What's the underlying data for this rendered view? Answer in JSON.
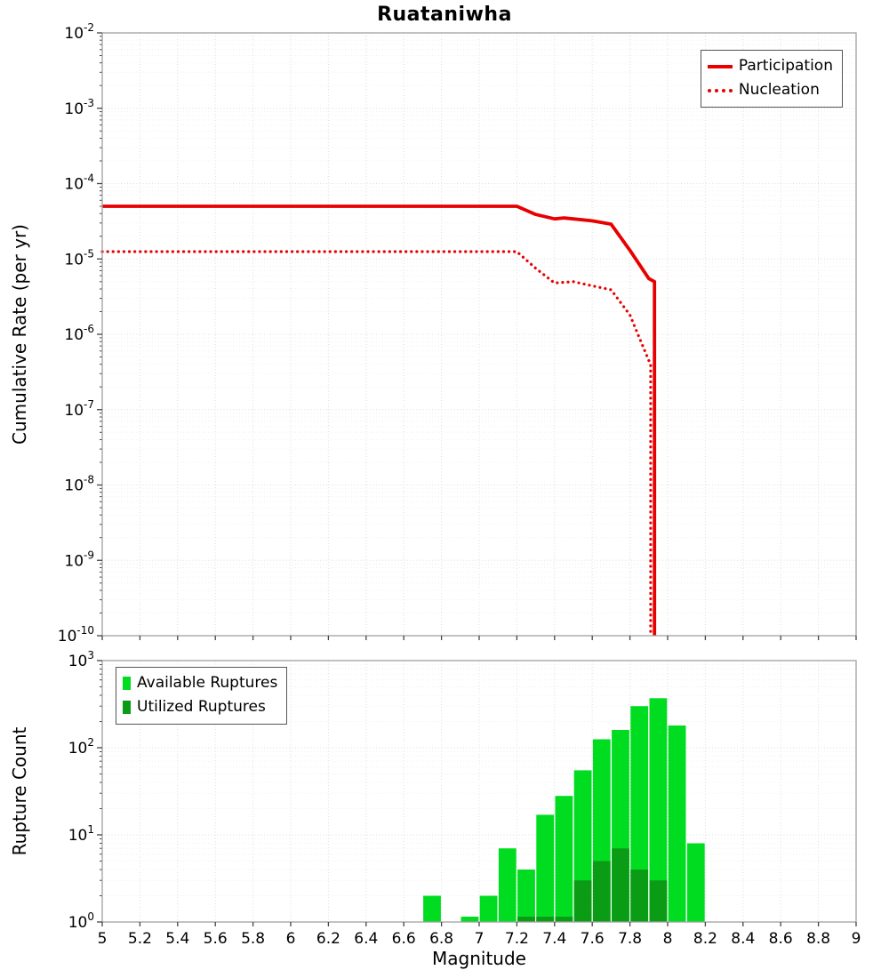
{
  "title": "Ruataniwha",
  "xlabel": "Magnitude",
  "x_ticks": [
    "5",
    "5.2",
    "5.4",
    "5.6",
    "5.8",
    "6",
    "6.2",
    "6.4",
    "6.6",
    "6.8",
    "7",
    "7.2",
    "7.4",
    "7.6",
    "7.8",
    "8",
    "8.2",
    "8.4",
    "8.6",
    "8.8",
    "9"
  ],
  "colors": {
    "rate_lines": "#e80000",
    "available": "#00dd20",
    "utilized": "#0b9c16",
    "grid_major": "#dcdcdc",
    "grid_minor": "#efefef",
    "frame": "#a0a0a0",
    "tick": "#444444"
  },
  "chart_data": [
    {
      "type": "line",
      "panel": "top",
      "title": "Ruataniwha",
      "xlabel": "Magnitude",
      "ylabel": "Cumulative Rate (per yr)",
      "xlim": [
        5,
        9
      ],
      "ylim": [
        1e-10,
        0.01
      ],
      "ylim_exp": [
        -10,
        -2
      ],
      "y_tick_exponents": [
        -2,
        -3,
        -4,
        -5,
        -6,
        -7,
        -8,
        -9,
        -10
      ],
      "grid": true,
      "legend_position": "top-right",
      "series": [
        {
          "name": "Participation",
          "style": "solid",
          "color": "#e80000",
          "x": [
            5.0,
            7.2,
            7.3,
            7.4,
            7.45,
            7.5,
            7.6,
            7.7,
            7.8,
            7.9,
            7.93,
            7.93
          ],
          "y": [
            5e-05,
            5e-05,
            3.9e-05,
            3.4e-05,
            3.5e-05,
            3.4e-05,
            3.2e-05,
            2.9e-05,
            1.3e-05,
            5.5e-06,
            5e-06,
            1e-10
          ]
        },
        {
          "name": "Nucleation",
          "style": "dotted",
          "color": "#e80000",
          "x": [
            5.0,
            7.2,
            7.3,
            7.4,
            7.5,
            7.6,
            7.7,
            7.8,
            7.9,
            7.91,
            7.91
          ],
          "y": [
            1.25e-05,
            1.25e-05,
            7.5e-06,
            4.8e-06,
            5e-06,
            4.4e-06,
            3.9e-06,
            1.8e-06,
            4.5e-07,
            4e-07,
            1e-10
          ]
        }
      ]
    },
    {
      "type": "bar",
      "panel": "bottom",
      "xlabel": "Magnitude",
      "ylabel": "Rupture Count",
      "xlim": [
        5,
        9
      ],
      "ylim": [
        1,
        1000
      ],
      "ylim_exp": [
        0,
        3
      ],
      "y_tick_exponents": [
        0,
        1,
        2,
        3
      ],
      "grid": true,
      "legend_position": "top-left",
      "bin_width": 0.1,
      "categories": [
        6.75,
        6.85,
        6.95,
        7.05,
        7.15,
        7.25,
        7.35,
        7.45,
        7.55,
        7.65,
        7.75,
        7.85,
        7.95,
        8.05,
        8.15
      ],
      "series": [
        {
          "name": "Available Ruptures",
          "color": "#00dd20",
          "values": [
            2,
            0,
            1,
            2,
            7,
            4,
            17,
            28,
            55,
            125,
            160,
            300,
            370,
            180,
            8
          ]
        },
        {
          "name": "Utilized Ruptures",
          "color": "#0b9c16",
          "values": [
            0,
            0,
            0,
            0,
            0,
            1,
            1,
            1,
            3,
            5,
            7,
            4,
            3,
            0,
            0
          ]
        }
      ]
    }
  ]
}
